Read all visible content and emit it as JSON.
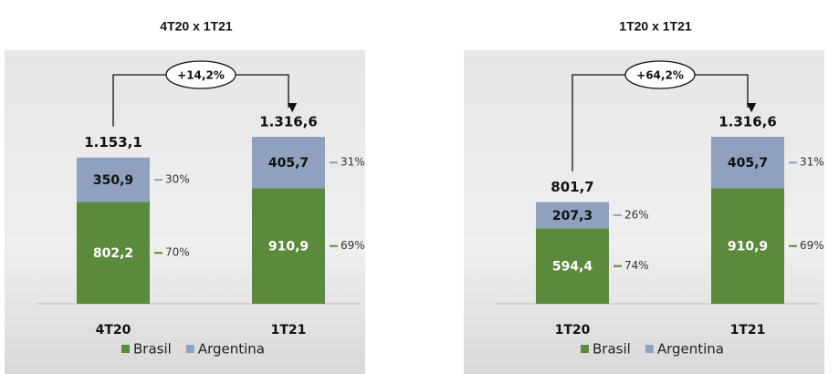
{
  "chart_data": [
    {
      "type": "stacked-bar",
      "title": "4T20 x 1T21",
      "annotation": "+14,2%",
      "categories": [
        "4T20",
        "1T21"
      ],
      "totals": [
        1153.1,
        1316.6
      ],
      "total_labels": [
        "1.153,1",
        "1.316,6"
      ],
      "series": [
        {
          "name": "Brasil",
          "color": "#5b8a3c",
          "values": [
            802.2,
            910.9
          ],
          "value_labels": [
            "802,2",
            "910,9"
          ],
          "shares": [
            70,
            69
          ],
          "share_labels": [
            "70%",
            "69%"
          ]
        },
        {
          "name": "Argentina",
          "color": "#8fa1bf",
          "values": [
            350.9,
            405.7
          ],
          "value_labels": [
            "350,9",
            "405,7"
          ],
          "shares": [
            30,
            31
          ],
          "share_labels": [
            "30%",
            "31%"
          ]
        }
      ]
    },
    {
      "type": "stacked-bar",
      "title": "1T20 x 1T21",
      "annotation": "+64,2%",
      "categories": [
        "1T20",
        "1T21"
      ],
      "totals": [
        801.7,
        1316.6
      ],
      "total_labels": [
        "801,7",
        "1.316,6"
      ],
      "series": [
        {
          "name": "Brasil",
          "color": "#5b8a3c",
          "values": [
            594.4,
            910.9
          ],
          "value_labels": [
            "594,4",
            "910,9"
          ],
          "shares": [
            74,
            69
          ],
          "share_labels": [
            "74%",
            "69%"
          ]
        },
        {
          "name": "Argentina",
          "color": "#8fa1bf",
          "values": [
            207.3,
            405.7
          ],
          "value_labels": [
            "207,3",
            "405,7"
          ],
          "shares": [
            26,
            31
          ],
          "share_labels": [
            "26%",
            "31%"
          ]
        }
      ]
    }
  ]
}
